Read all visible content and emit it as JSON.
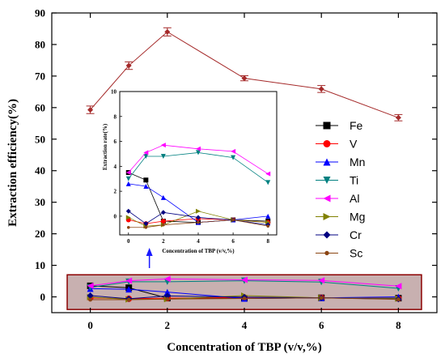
{
  "chart_data": [
    {
      "type": "line",
      "xlabel": "Concentration of TBP (v/v,%)",
      "ylabel": "Extraction efficiency(%)",
      "xlim": [
        -1,
        9
      ],
      "ylim": [
        -5,
        90
      ],
      "x_ticks": [
        0,
        2,
        4,
        6,
        8
      ],
      "y_ticks": [
        0,
        10,
        20,
        30,
        40,
        50,
        60,
        70,
        80,
        90
      ],
      "main_series": {
        "name": "Sc",
        "color": "#a52a2a",
        "x": [
          0,
          1,
          2,
          4,
          6,
          8
        ],
        "values": [
          59.3,
          73.3,
          84.0,
          69.3,
          65.9,
          56.8
        ],
        "errors": [
          1.2,
          1.2,
          1.3,
          0.8,
          1.1,
          1.0
        ]
      },
      "series": [
        {
          "name": "Fe",
          "color": "#000000",
          "marker": "square",
          "x": [
            0,
            1,
            2,
            4,
            6,
            8
          ],
          "values": [
            3.5,
            2.9,
            -0.4,
            -0.5,
            -0.3,
            -0.4
          ]
        },
        {
          "name": "V",
          "color": "#ff0000",
          "marker": "circle",
          "x": [
            0,
            1,
            2,
            4,
            6,
            8
          ],
          "values": [
            -0.3,
            -0.6,
            -0.4,
            -0.2,
            -0.3,
            -0.5
          ]
        },
        {
          "name": "Mn",
          "color": "#0000ff",
          "marker": "triangle-up",
          "x": [
            0,
            1,
            2,
            4,
            6,
            8
          ],
          "values": [
            2.6,
            2.4,
            1.5,
            -0.5,
            -0.3,
            0.0
          ]
        },
        {
          "name": "Ti",
          "color": "#008080",
          "marker": "triangle-down",
          "x": [
            0,
            1,
            2,
            4,
            6,
            8
          ],
          "values": [
            3.0,
            4.8,
            4.8,
            5.1,
            4.7,
            2.7
          ]
        },
        {
          "name": "Al",
          "color": "#ff00ff",
          "marker": "triangle-left",
          "x": [
            0,
            1,
            2,
            4,
            6,
            8
          ],
          "values": [
            3.5,
            5.1,
            5.7,
            5.4,
            5.2,
            3.4
          ]
        },
        {
          "name": "Mg",
          "color": "#808000",
          "marker": "triangle-right",
          "x": [
            0,
            1,
            2,
            4,
            6,
            8
          ],
          "values": [
            -0.1,
            -0.8,
            -0.7,
            0.4,
            -0.3,
            -0.5
          ]
        },
        {
          "name": "Cr",
          "color": "#000080",
          "marker": "diamond",
          "x": [
            0,
            1,
            2,
            4,
            6,
            8
          ],
          "values": [
            0.4,
            -0.6,
            0.3,
            -0.1,
            -0.3,
            -0.7
          ]
        },
        {
          "name": "Sc",
          "color": "#8b4513",
          "marker": "small-circle",
          "x": [
            0,
            1,
            2,
            4,
            6,
            8
          ],
          "values": [
            -0.9,
            -0.9,
            -0.7,
            -0.5,
            -0.3,
            -0.8
          ]
        }
      ],
      "highlight_band": {
        "ymin": -4,
        "ymax": 7,
        "fill": "#c8b0b0",
        "stroke": "#8b0000"
      }
    },
    {
      "type": "line",
      "role": "inset",
      "xlabel": "Concentration of TBP (v/v,%)",
      "ylabel": "Extraction rate(%)",
      "xlim": [
        -0.5,
        8.5
      ],
      "ylim": [
        -1.5,
        10
      ],
      "x_ticks": [
        0,
        2,
        4,
        6,
        8
      ],
      "y_ticks": [
        0,
        2,
        4,
        6,
        8,
        10
      ]
    }
  ],
  "legend": {
    "position": "right",
    "items": [
      "Fe",
      "V",
      "Mn",
      "Ti",
      "Al",
      "Mg",
      "Cr",
      "Sc"
    ]
  },
  "arrow_color": "#1a1aff"
}
